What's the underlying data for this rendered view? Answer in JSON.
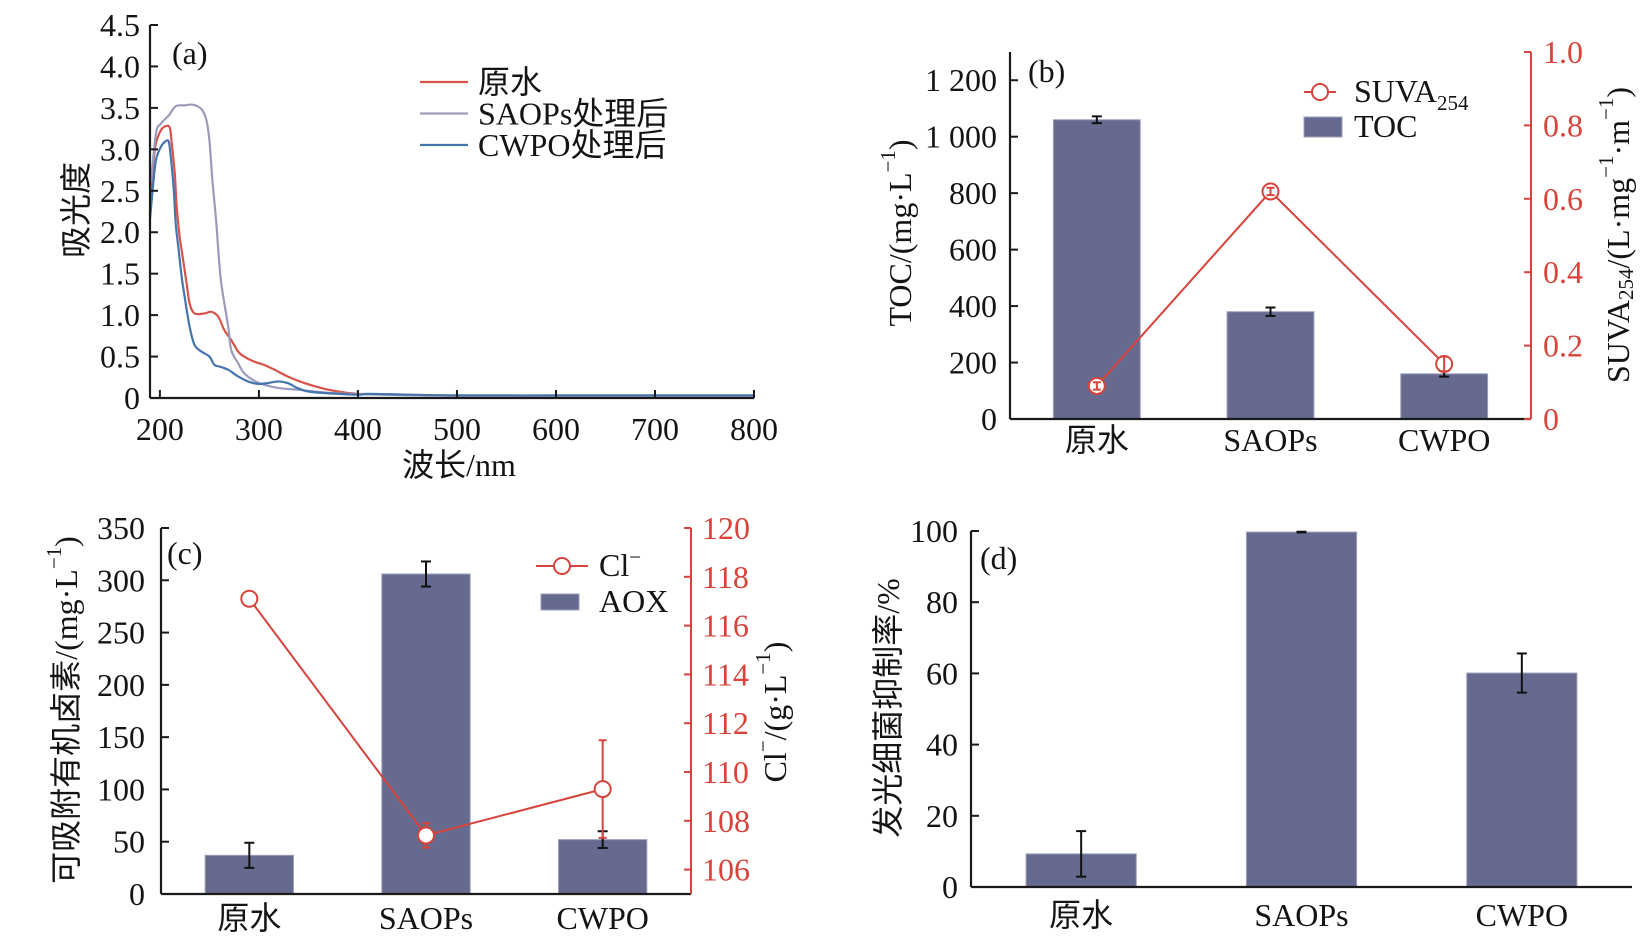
{
  "chart_data": [
    {
      "panel_label": "(a)",
      "type": "line",
      "title": "",
      "xlabel": "波长/nm",
      "ylabel": "吸光度",
      "xlim": [
        190,
        800
      ],
      "ylim": [
        0,
        4.5
      ],
      "xticks": [
        200,
        300,
        400,
        500,
        600,
        700,
        800
      ],
      "xtick_labels": [
        "200",
        "300",
        "400",
        "500",
        "600",
        "700",
        "800"
      ],
      "yticks": [
        0,
        0.5,
        1.0,
        1.5,
        2.0,
        2.5,
        3.0,
        3.5,
        4.0,
        4.5
      ],
      "ytick_labels": [
        "0",
        "0.5",
        "1.0",
        "1.5",
        "2.0",
        "2.5",
        "3.0",
        "3.5",
        "4.0",
        "4.5"
      ],
      "grid": false,
      "legend": {
        "position": "top-right",
        "entries": [
          "原水",
          "SAOPs处理后",
          "CWPO处理后"
        ]
      },
      "series": [
        {
          "name": "原水",
          "color": "#d9534a",
          "x": [
            191,
            193,
            196,
            201,
            206,
            210,
            212,
            215,
            217,
            220,
            222,
            227,
            230,
            235,
            245,
            252,
            259,
            265,
            272,
            279,
            285,
            295,
            305,
            316,
            329,
            346,
            363,
            379,
            400,
            450,
            500,
            600,
            700,
            800
          ],
          "y": [
            2.35,
            2.79,
            3.07,
            3.23,
            3.28,
            3.26,
            3.07,
            2.71,
            2.3,
            1.94,
            1.78,
            1.38,
            1.14,
            1.02,
            1.02,
            1.04,
            0.98,
            0.82,
            0.7,
            0.56,
            0.5,
            0.44,
            0.4,
            0.34,
            0.26,
            0.18,
            0.12,
            0.08,
            0.05,
            0.04,
            0.03,
            0.03,
            0.03,
            0.03
          ]
        },
        {
          "name": "SAOPs处理后",
          "color": "#9a9bbd",
          "x": [
            191,
            196,
            201,
            209,
            216,
            225,
            232,
            238,
            243,
            247,
            250,
            253,
            257,
            259,
            262,
            269,
            272,
            279,
            285,
            295,
            305,
            320,
            339,
            373,
            406,
            450,
            500,
            600,
            700,
            800
          ],
          "y": [
            2.6,
            3.19,
            3.31,
            3.41,
            3.52,
            3.53,
            3.54,
            3.52,
            3.47,
            3.35,
            3.11,
            2.63,
            2.11,
            1.78,
            1.38,
            0.86,
            0.58,
            0.42,
            0.3,
            0.21,
            0.16,
            0.12,
            0.1,
            0.06,
            0.045,
            0.035,
            0.03,
            0.03,
            0.03,
            0.03
          ]
        },
        {
          "name": "CWPO处理后",
          "color": "#4575ad",
          "x": [
            190,
            193,
            196,
            201,
            206,
            209,
            211,
            214,
            216,
            219,
            222,
            225,
            230,
            235,
            242,
            250,
            255,
            260,
            269,
            279,
            289,
            299,
            309,
            319,
            329,
            339,
            349,
            366,
            400,
            410,
            450,
            500,
            600,
            700,
            800
          ],
          "y": [
            2.16,
            2.55,
            2.87,
            3.03,
            3.1,
            3.09,
            2.91,
            2.51,
            2.1,
            1.78,
            1.46,
            1.22,
            0.86,
            0.64,
            0.56,
            0.5,
            0.4,
            0.38,
            0.34,
            0.26,
            0.2,
            0.17,
            0.18,
            0.2,
            0.18,
            0.12,
            0.08,
            0.06,
            0.04,
            0.05,
            0.04,
            0.03,
            0.03,
            0.03,
            0.03
          ]
        }
      ]
    },
    {
      "panel_label": "(b)",
      "type": "bar",
      "title": "",
      "categories": [
        "原水",
        "SAOPs",
        "CWPO"
      ],
      "series": [
        {
          "name": "TOC",
          "kind": "bar",
          "axis": "left",
          "values": [
            1060,
            380,
            160
          ],
          "errors": [
            12,
            15,
            10
          ],
          "color": "#666a8f"
        },
        {
          "name": "SUVA254",
          "kind": "line",
          "axis": "right",
          "values": [
            0.09,
            0.62,
            0.15
          ],
          "errors": [
            0.01,
            0.01,
            0.02
          ],
          "color": "#d8433b"
        }
      ],
      "ylabel": [
        {
          "t": "TOC/(mg·L"
        },
        {
          "t": "−1",
          "sup": true
        },
        {
          "t": ")"
        }
      ],
      "y2label": [
        {
          "t": "SUVA"
        },
        {
          "t": "254",
          "sub": true
        },
        {
          "t": "/(L·mg"
        },
        {
          "t": "−1",
          "sup": true
        },
        {
          "t": "·m"
        },
        {
          "t": "−1",
          "sup": true
        },
        {
          "t": ")"
        }
      ],
      "ylim": [
        0,
        1300
      ],
      "yticks": [
        0,
        200,
        400,
        600,
        800,
        1000,
        1200
      ],
      "ytick_labels": [
        "0",
        "200",
        "400",
        "600",
        "800",
        "1 000",
        "1 200"
      ],
      "y2lim": [
        0,
        1.0
      ],
      "y2ticks": [
        0,
        0.2,
        0.4,
        0.6,
        0.8,
        1.0
      ],
      "y2tick_labels": [
        "0",
        "0.2",
        "0.4",
        "0.6",
        "0.8",
        "1.0"
      ],
      "grid": false,
      "legend": {
        "position": "top-right",
        "entries": [
          {
            "series": 1,
            "label": [
              {
                "t": "SUVA"
              },
              {
                "t": "254",
                "sub": true
              }
            ]
          },
          {
            "series": 0,
            "label": [
              {
                "t": "TOC"
              }
            ]
          }
        ]
      }
    },
    {
      "panel_label": "(c)",
      "type": "bar",
      "title": "",
      "categories": [
        "原水",
        "SAOPs",
        "CWPO"
      ],
      "series": [
        {
          "name": "AOX",
          "kind": "bar",
          "axis": "left",
          "values": [
            37,
            306,
            52
          ],
          "errors": [
            12,
            12,
            8
          ],
          "color": "#666a8f"
        },
        {
          "name": "Cl−",
          "kind": "line",
          "axis": "right",
          "values": [
            117.1,
            107.4,
            109.3
          ],
          "errors": [
            0.2,
            0.5,
            2.0
          ],
          "color": "#d8433b"
        }
      ],
      "ylabel": [
        {
          "t": "可吸附有机卤素/(mg·L"
        },
        {
          "t": "−1",
          "sup": true
        },
        {
          "t": ")"
        }
      ],
      "y2label": [
        {
          "t": "Cl"
        },
        {
          "t": "−",
          "sup": true
        },
        {
          "t": "/(g·L"
        },
        {
          "t": "−1",
          "sup": true
        },
        {
          "t": ")"
        }
      ],
      "ylim": [
        0,
        350
      ],
      "yticks": [
        0,
        50,
        100,
        150,
        200,
        250,
        300,
        350
      ],
      "ytick_labels": [
        "0",
        "50",
        "100",
        "150",
        "200",
        "250",
        "300",
        "350"
      ],
      "y2lim": [
        105,
        120
      ],
      "y2ticks": [
        106,
        108,
        110,
        112,
        114,
        116,
        118,
        120
      ],
      "y2tick_labels": [
        "106",
        "108",
        "110",
        "112",
        "114",
        "116",
        "118",
        "120"
      ],
      "grid": false,
      "legend": {
        "position": "top-right",
        "entries": [
          {
            "series": 1,
            "label": [
              {
                "t": "Cl"
              },
              {
                "t": "−",
                "sup": true
              }
            ]
          },
          {
            "series": 0,
            "label": [
              {
                "t": "AOX"
              }
            ]
          }
        ]
      }
    },
    {
      "panel_label": "(d)",
      "type": "bar",
      "title": "",
      "categories": [
        "原水",
        "SAOPs",
        "CWPO"
      ],
      "series": [
        {
          "name": "发光细菌抑制率",
          "kind": "bar",
          "axis": "left",
          "values": [
            9.3,
            99.7,
            60.1
          ],
          "errors": [
            6.4,
            0.1,
            5.5
          ],
          "color": "#666a8f"
        }
      ],
      "ylabel": [
        {
          "t": "发光细菌抑制率/%"
        }
      ],
      "ylim": [
        0,
        100
      ],
      "yticks": [
        0,
        20,
        40,
        60,
        80,
        100
      ],
      "ytick_labels": [
        "0",
        "20",
        "40",
        "60",
        "80",
        "100"
      ],
      "grid": false
    }
  ]
}
